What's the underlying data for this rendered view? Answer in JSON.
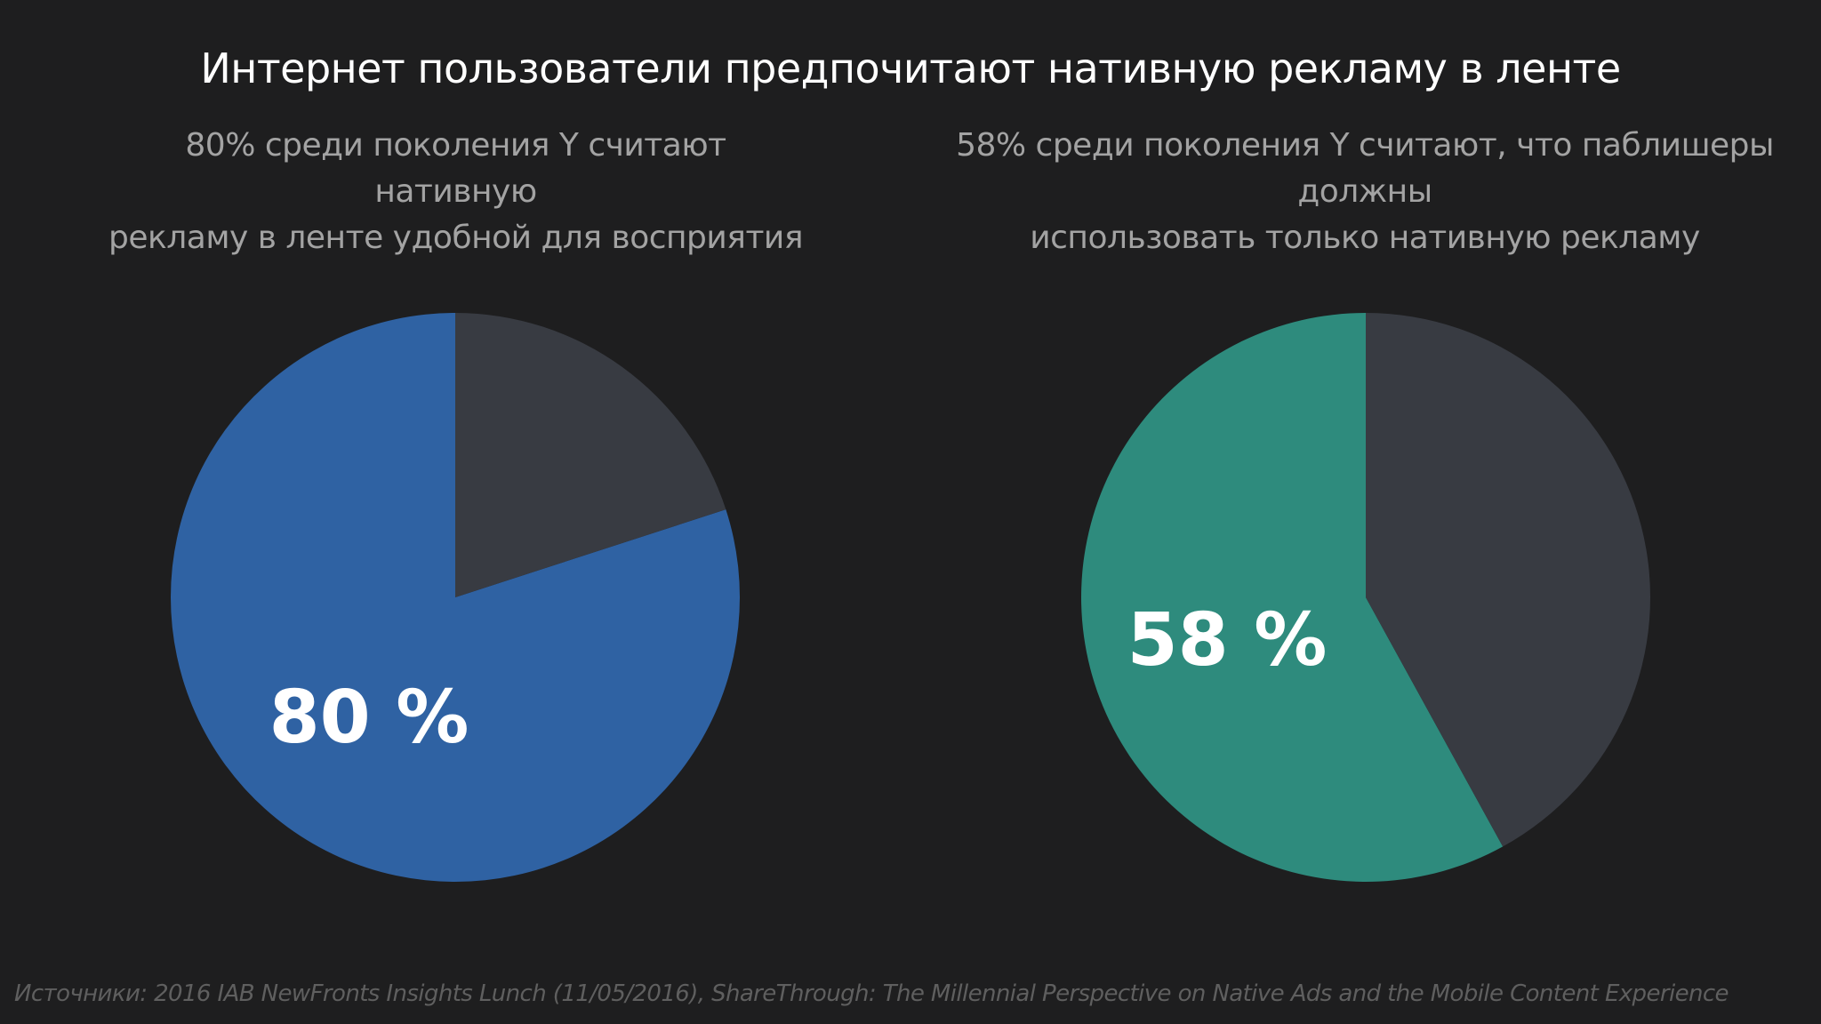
{
  "slide": {
    "title": "Интернет пользователи предпочитают нативную рекламу в ленте",
    "footnote": "Источники: 2016 IAB NewFronts Insights Lunch (11/05/2016), ShareThrough: The Millennial Perspective on Native Ads and the Mobile Content Experience"
  },
  "chart_data": [
    {
      "type": "pie",
      "subtitle": "80% среди поколения Y считают нативную рекламу в ленте удобной для восприятия",
      "subtitle_lines": [
        "80% среди поколения Y считают нативную",
        "рекламу в ленте удобной для восприятия"
      ],
      "slices": [
        {
          "value": 80,
          "color": "#2f62a3"
        },
        {
          "value": 20,
          "color": "#383b42"
        }
      ],
      "data_label": "80 %"
    },
    {
      "type": "pie",
      "subtitle": "58% среди поколения Y считают, что паблишеры должны использовать только нативную рекламу",
      "subtitle_lines": [
        "58% среди поколения Y считают, что паблишеры должны",
        "использовать только нативную рекламу"
      ],
      "slices": [
        {
          "value": 58,
          "color": "#2e8b7d"
        },
        {
          "value": 42,
          "color": "#383b42"
        }
      ],
      "data_label": "58 %"
    }
  ]
}
